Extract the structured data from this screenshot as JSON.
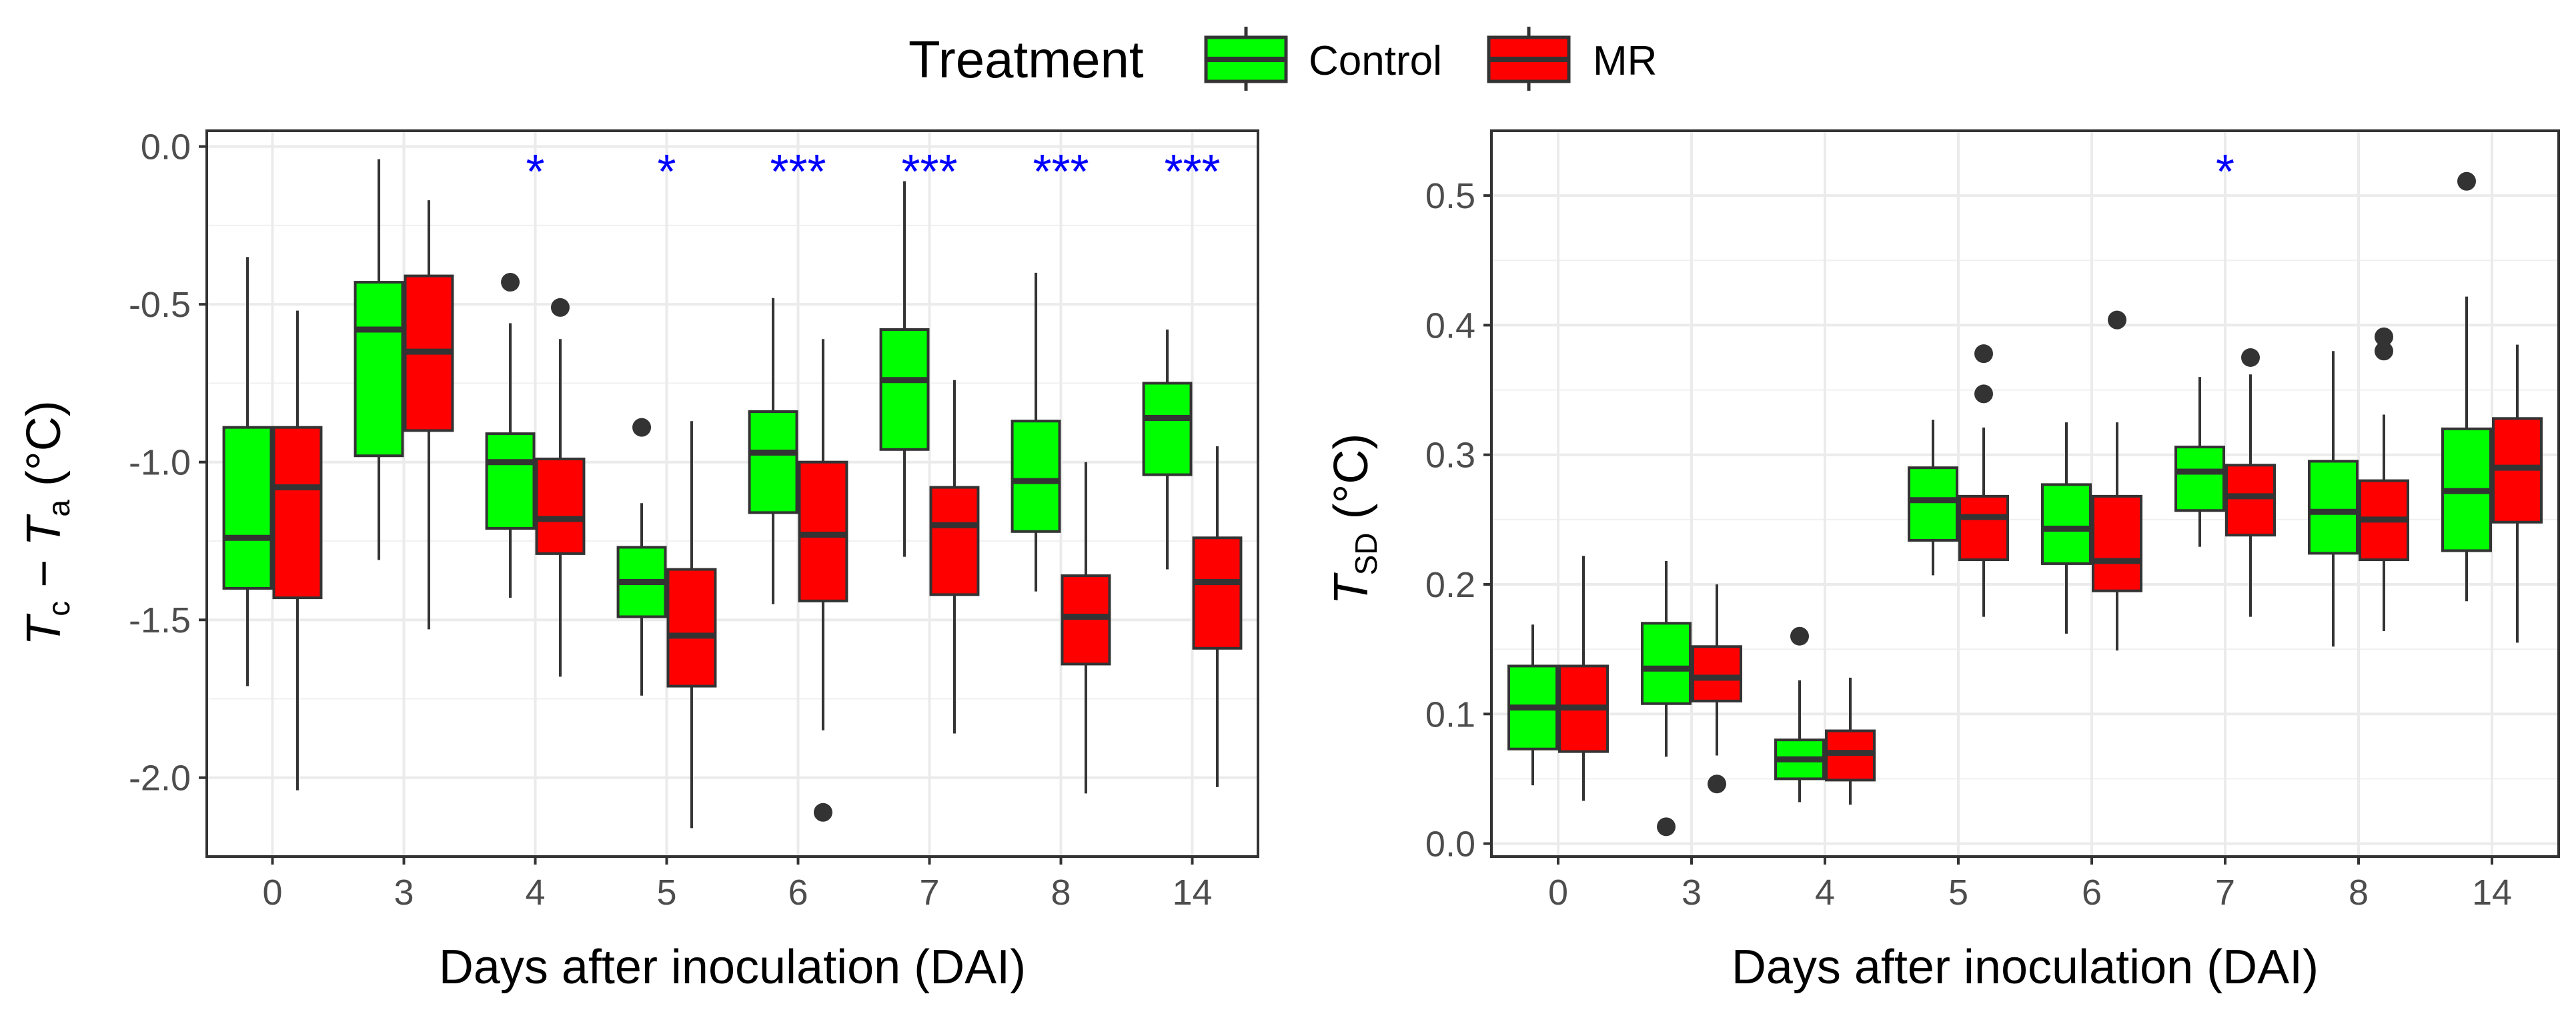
{
  "legend": {
    "title": "Treatment",
    "items": [
      {
        "label": "Control",
        "color": "#00ff00"
      },
      {
        "label": "MR",
        "color": "#ff0000"
      }
    ]
  },
  "chart_data": [
    {
      "type": "box",
      "xlabel": "Days after inoculation (DAI)",
      "ylabel": "Tc − Ta (°C)",
      "ylabel_parts": {
        "t1": "T",
        "sub1": "c",
        "minus": " − ",
        "t2": "T",
        "sub2": "a",
        "unit": " (°C)"
      },
      "ylim": [
        -2.25,
        0.05
      ],
      "yticks": [
        0.0,
        -0.5,
        -1.0,
        -1.5,
        -2.0
      ],
      "ytick_labels": [
        "0.0",
        "-0.5",
        "-1.0",
        "-1.5",
        "-2.0"
      ],
      "categories": [
        "0",
        "3",
        "4",
        "5",
        "6",
        "7",
        "8",
        "14"
      ],
      "significance": [
        "",
        "",
        "*",
        "*",
        "***",
        "***",
        "***",
        "***"
      ],
      "series": [
        {
          "name": "Control",
          "color": "#00ff00",
          "boxes": [
            {
              "lw": -1.71,
              "q1": -1.4,
              "med": -1.24,
              "q3": -0.89,
              "uw": -0.35,
              "outliers": []
            },
            {
              "lw": -1.31,
              "q1": -0.98,
              "med": -0.58,
              "q3": -0.43,
              "uw": -0.04,
              "outliers": []
            },
            {
              "lw": -1.43,
              "q1": -1.21,
              "med": -1.0,
              "q3": -0.91,
              "uw": -0.56,
              "outliers": [
                -0.43
              ]
            },
            {
              "lw": -1.74,
              "q1": -1.49,
              "med": -1.38,
              "q3": -1.27,
              "uw": -1.13,
              "outliers": [
                -0.89
              ]
            },
            {
              "lw": -1.45,
              "q1": -1.16,
              "med": -0.97,
              "q3": -0.84,
              "uw": -0.48,
              "outliers": []
            },
            {
              "lw": -1.3,
              "q1": -0.96,
              "med": -0.74,
              "q3": -0.58,
              "uw": -0.11,
              "outliers": []
            },
            {
              "lw": -1.41,
              "q1": -1.22,
              "med": -1.06,
              "q3": -0.87,
              "uw": -0.4,
              "outliers": []
            },
            {
              "lw": -1.34,
              "q1": -1.04,
              "med": -0.86,
              "q3": -0.75,
              "uw": -0.58,
              "outliers": []
            }
          ]
        },
        {
          "name": "MR",
          "color": "#ff0000",
          "boxes": [
            {
              "lw": -2.04,
              "q1": -1.43,
              "med": -1.08,
              "q3": -0.89,
              "uw": -0.52,
              "outliers": []
            },
            {
              "lw": -1.53,
              "q1": -0.9,
              "med": -0.65,
              "q3": -0.41,
              "uw": -0.17,
              "outliers": []
            },
            {
              "lw": -1.68,
              "q1": -1.29,
              "med": -1.18,
              "q3": -0.99,
              "uw": -0.61,
              "outliers": [
                -0.51
              ]
            },
            {
              "lw": -2.16,
              "q1": -1.71,
              "med": -1.55,
              "q3": -1.34,
              "uw": -0.87,
              "outliers": []
            },
            {
              "lw": -1.85,
              "q1": -1.44,
              "med": -1.23,
              "q3": -1.0,
              "uw": -0.61,
              "outliers": [
                -2.11
              ]
            },
            {
              "lw": -1.86,
              "q1": -1.42,
              "med": -1.2,
              "q3": -1.08,
              "uw": -0.74,
              "outliers": []
            },
            {
              "lw": -2.05,
              "q1": -1.64,
              "med": -1.49,
              "q3": -1.36,
              "uw": -1.0,
              "outliers": []
            },
            {
              "lw": -2.03,
              "q1": -1.59,
              "med": -1.38,
              "q3": -1.24,
              "uw": -0.95,
              "outliers": []
            }
          ]
        }
      ]
    },
    {
      "type": "box",
      "xlabel": "Days after inoculation (DAI)",
      "ylabel": "TSD (°C)",
      "ylabel_parts": {
        "t1": "T",
        "sub1": "SD",
        "unit": " (°C)"
      },
      "ylim": [
        -0.01,
        0.55
      ],
      "yticks": [
        0.0,
        0.1,
        0.2,
        0.3,
        0.4,
        0.5
      ],
      "ytick_labels": [
        "0.0",
        "0.1",
        "0.2",
        "0.3",
        "0.4",
        "0.5"
      ],
      "categories": [
        "0",
        "3",
        "4",
        "5",
        "6",
        "7",
        "8",
        "14"
      ],
      "significance": [
        "",
        "",
        "",
        "",
        "",
        "*",
        "",
        ""
      ],
      "series": [
        {
          "name": "Control",
          "color": "#00ff00",
          "boxes": [
            {
              "lw": 0.045,
              "q1": 0.073,
              "med": 0.105,
              "q3": 0.137,
              "uw": 0.169,
              "outliers": []
            },
            {
              "lw": 0.067,
              "q1": 0.108,
              "med": 0.135,
              "q3": 0.17,
              "uw": 0.218,
              "outliers": [
                0.013
              ]
            },
            {
              "lw": 0.032,
              "q1": 0.05,
              "med": 0.065,
              "q3": 0.08,
              "uw": 0.126,
              "outliers": [
                0.16
              ]
            },
            {
              "lw": 0.207,
              "q1": 0.234,
              "med": 0.265,
              "q3": 0.29,
              "uw": 0.327,
              "outliers": []
            },
            {
              "lw": 0.162,
              "q1": 0.216,
              "med": 0.243,
              "q3": 0.277,
              "uw": 0.325,
              "outliers": []
            },
            {
              "lw": 0.229,
              "q1": 0.257,
              "med": 0.287,
              "q3": 0.306,
              "uw": 0.36,
              "outliers": []
            },
            {
              "lw": 0.152,
              "q1": 0.224,
              "med": 0.256,
              "q3": 0.295,
              "uw": 0.38,
              "outliers": []
            },
            {
              "lw": 0.187,
              "q1": 0.226,
              "med": 0.272,
              "q3": 0.32,
              "uw": 0.422,
              "outliers": [
                0.511
              ]
            }
          ]
        },
        {
          "name": "MR",
          "color": "#ff0000",
          "boxes": [
            {
              "lw": 0.033,
              "q1": 0.071,
              "med": 0.105,
              "q3": 0.137,
              "uw": 0.222,
              "outliers": []
            },
            {
              "lw": 0.068,
              "q1": 0.11,
              "med": 0.128,
              "q3": 0.152,
              "uw": 0.2,
              "outliers": [
                0.046
              ]
            },
            {
              "lw": 0.03,
              "q1": 0.049,
              "med": 0.07,
              "q3": 0.087,
              "uw": 0.128,
              "outliers": []
            },
            {
              "lw": 0.175,
              "q1": 0.219,
              "med": 0.252,
              "q3": 0.268,
              "uw": 0.321,
              "outliers": [
                0.347,
                0.378
              ]
            },
            {
              "lw": 0.149,
              "q1": 0.195,
              "med": 0.218,
              "q3": 0.268,
              "uw": 0.325,
              "outliers": [
                0.404
              ]
            },
            {
              "lw": 0.175,
              "q1": 0.238,
              "med": 0.268,
              "q3": 0.292,
              "uw": 0.362,
              "outliers": [
                0.375
              ]
            },
            {
              "lw": 0.164,
              "q1": 0.219,
              "med": 0.25,
              "q3": 0.28,
              "uw": 0.331,
              "outliers": [
                0.38,
                0.391
              ]
            },
            {
              "lw": 0.155,
              "q1": 0.248,
              "med": 0.29,
              "q3": 0.328,
              "uw": 0.385,
              "outliers": []
            }
          ]
        }
      ]
    }
  ]
}
